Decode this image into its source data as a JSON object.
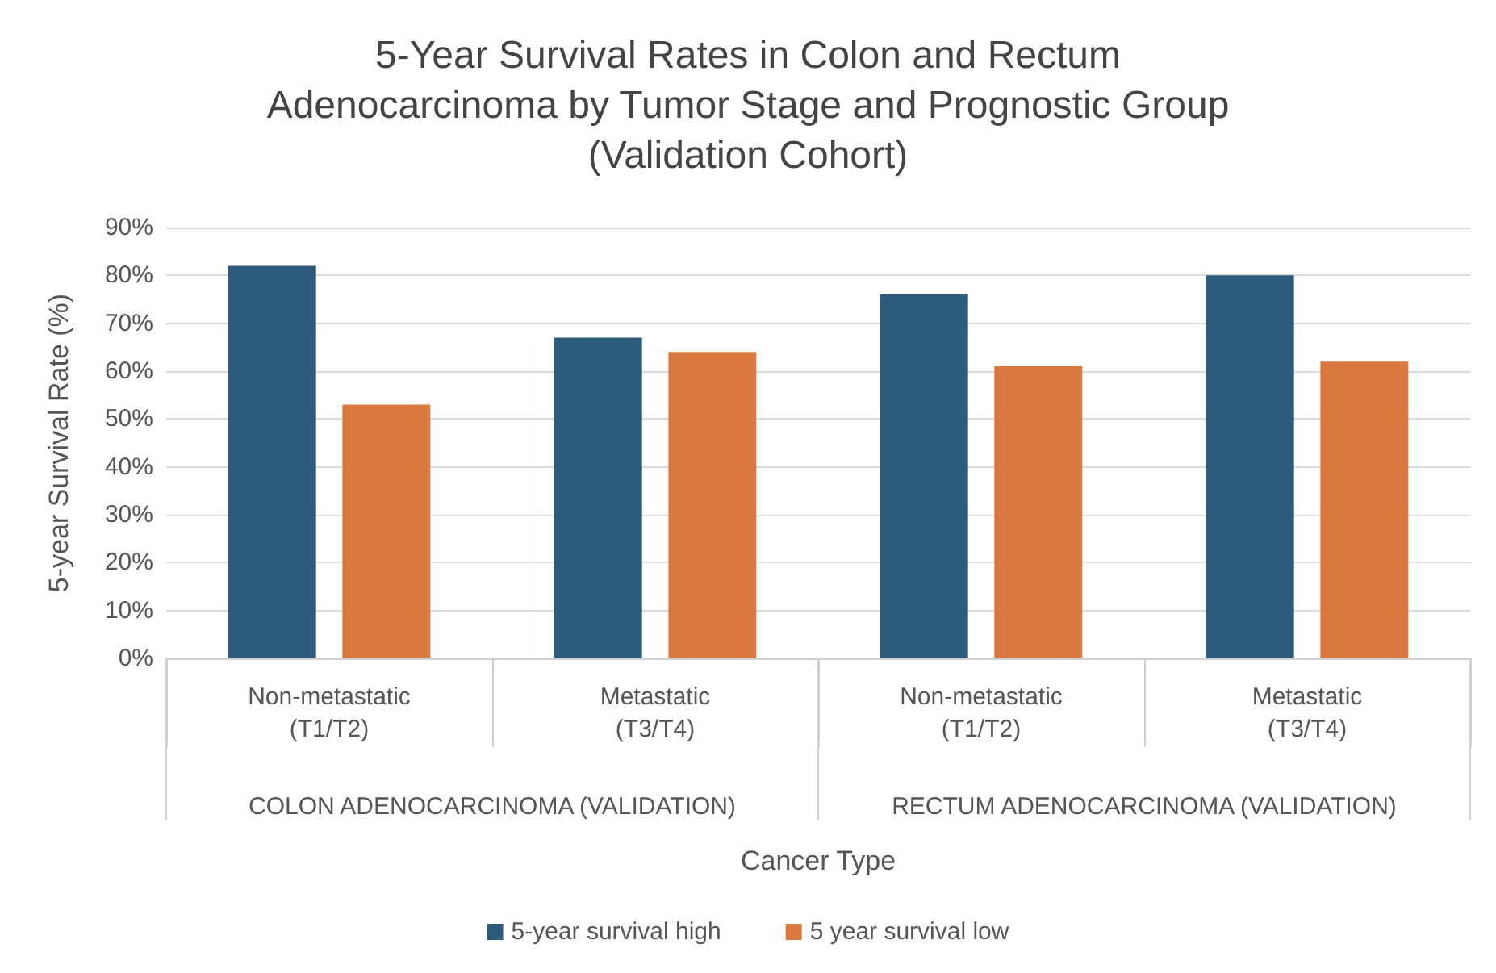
{
  "chart_data": {
    "type": "bar",
    "title": "5-Year Survival Rates in Colon and Rectum\nAdenocarcinoma by Tumor Stage and Prognostic Group\n(Validation Cohort)",
    "xlabel": "Cancer Type",
    "ylabel": "5-year Survival Rate (%)",
    "categories": [
      "Non-metastatic\n(T1/T2)",
      "Metastatic\n(T3/T4)",
      "Non-metastatic\n(T1/T2)",
      "Metastatic\n(T3/T4)"
    ],
    "series": [
      {
        "name": "5-year survival high",
        "color": "#2e5c7d",
        "values": [
          82,
          67,
          76,
          80
        ]
      },
      {
        "name": "5 year survival low",
        "color": "#d9783f",
        "values": [
          53,
          64,
          61,
          62
        ]
      }
    ],
    "annotations": [
      "COLON ADENOCARCINOMA (VALIDATION)",
      "RECTUM ADENOCARCINOMA (VALIDATION)"
    ],
    "ylim": [
      0,
      90
    ],
    "yticks": [
      {
        "value": 0,
        "label": "0%"
      },
      {
        "value": 10,
        "label": "10%"
      },
      {
        "value": 20,
        "label": "20%"
      },
      {
        "value": 30,
        "label": "30%"
      },
      {
        "value": 40,
        "label": "40%"
      },
      {
        "value": 50,
        "label": "50%"
      },
      {
        "value": 60,
        "label": "60%"
      },
      {
        "value": 70,
        "label": "70%"
      },
      {
        "value": 80,
        "label": "80%"
      },
      {
        "value": 90,
        "label": "90%"
      }
    ],
    "grid": "y",
    "legend": "bottom"
  }
}
